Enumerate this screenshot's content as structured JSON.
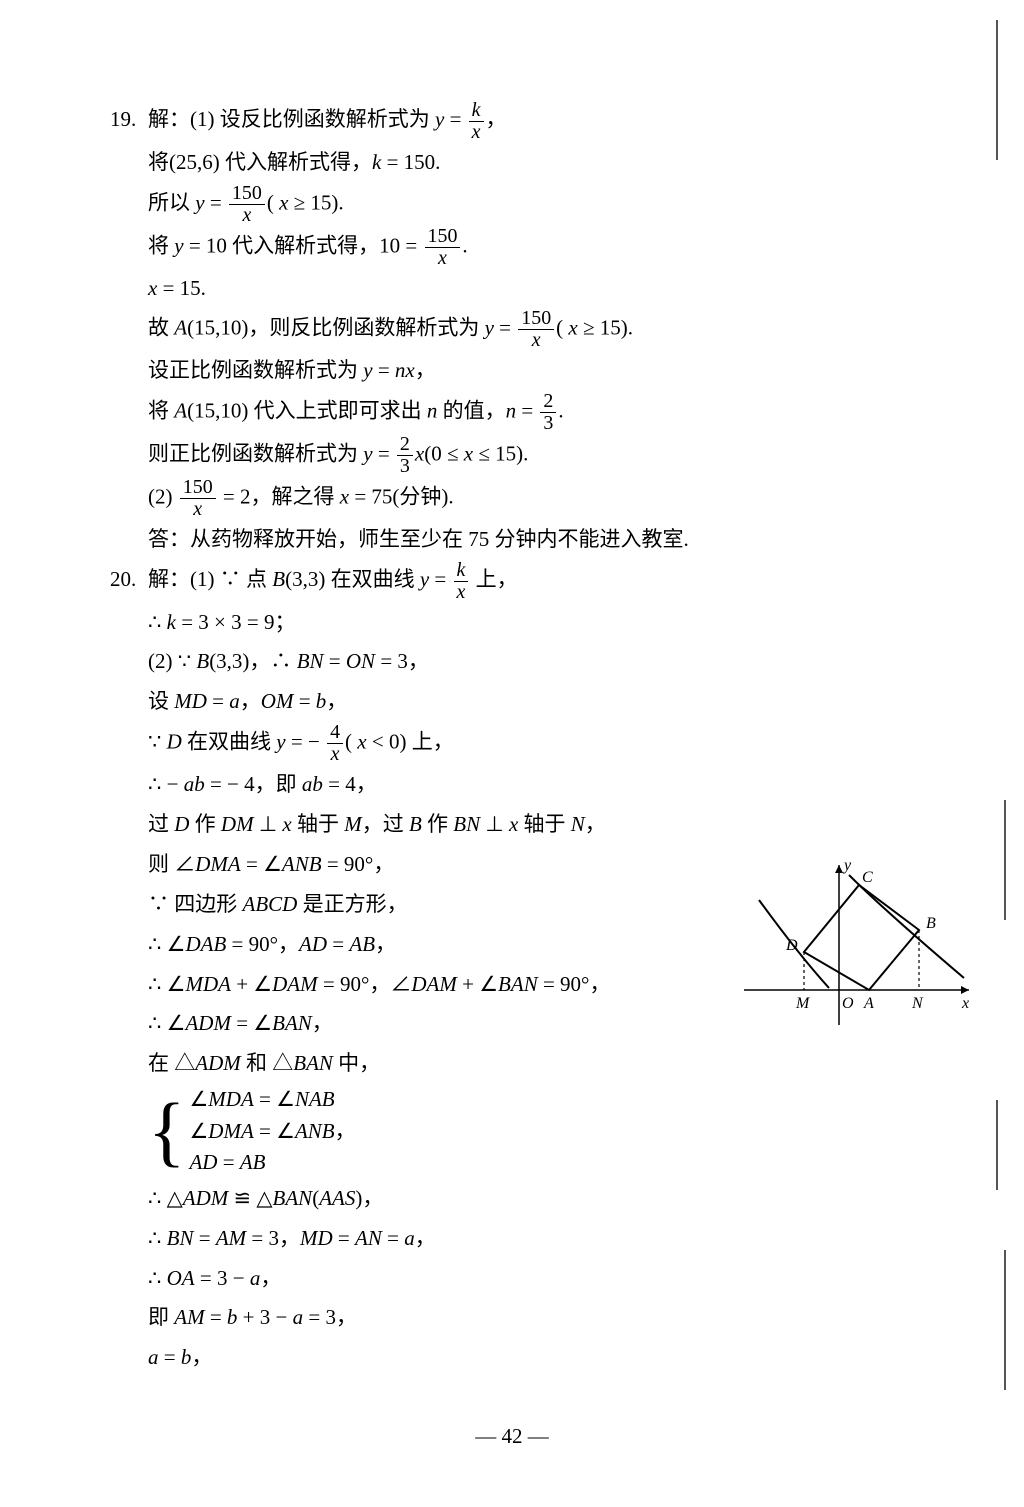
{
  "page_number": "— 42 —",
  "problems": {
    "p19": {
      "num": "19.",
      "lines": [
        "解：(1) 设反比例函数解析式为 y = {frac:k:x}，",
        "将(25,6) 代入解析式得，k = 150.",
        "所以 y = {frac:150:x}( x ≥ 15).",
        "将 y = 10 代入解析式得，10 = {frac:150:x}.",
        "x = 15.",
        "故 A(15,10)，则反比例函数解析式为 y = {frac:150:x}( x ≥ 15).",
        "设正比例函数解析式为 y = nx，",
        "将 A(15,10) 代入上式即可求出 n 的值，n = {frac:2:3}.",
        "则正比例函数解析式为 y = {frac:2:3}x(0 ≤ x ≤ 15).",
        "(2) {frac:150:x} = 2，解之得 x = 75(分钟).",
        "答：从药物释放开始，师生至少在 75 分钟内不能进入教室."
      ]
    },
    "p20": {
      "num": "20.",
      "lines": [
        "解：(1) ∵ 点 B(3,3) 在双曲线 y = {frac:k:x} 上，",
        "∴ k = 3 × 3 = 9；",
        "(2) ∵ B(3,3)，∴ BN = ON = 3，",
        "设 MD = a，OM = b，",
        "∵ D 在双曲线 y = − {frac:4:x}( x < 0) 上，",
        "∴ − ab = − 4，即 ab = 4，",
        "过 D 作 DM ⊥ x 轴于 M，过 B 作 BN ⊥ x 轴于 N，",
        "则 ∠DMA = ∠ANB = 90°，",
        "∵ 四边形 ABCD 是正方形，",
        "∴ ∠DAB = 90°，AD = AB，",
        "∴ ∠MDA + ∠DAM = 90°，∠DAM + ∠BAN = 90°，",
        "∴ ∠ADM = ∠BAN，",
        "在 △ADM 和 △BAN 中，"
      ],
      "brace": [
        "∠MDA = ∠NAB",
        "∠DMA = ∠ANB，",
        "AD = AB"
      ],
      "after": [
        "∴ △ADM ≌ △BAN(AAS)，",
        "∴ BN = AM = 3，MD = AN = a，",
        "∴ OA = 3 − a，",
        "即 AM = b + 3 − a = 3，",
        "a = b，"
      ]
    }
  },
  "figure": {
    "labels": {
      "y": "y",
      "x": "x",
      "O": "O",
      "M": "M",
      "A": "A",
      "N": "N",
      "B": "B",
      "C": "C",
      "D": "D"
    },
    "axis_color": "#000000",
    "curve_color": "#000000",
    "square_color": "#000000",
    "dash_color": "#000000"
  }
}
